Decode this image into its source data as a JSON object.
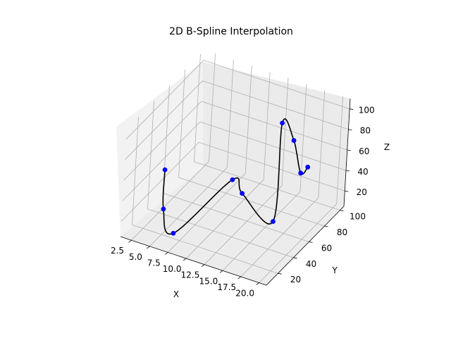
{
  "chart_data": {
    "type": "line3d",
    "title": "2D B-Spline Interpolation",
    "xlabel": "X",
    "ylabel": "Y",
    "zlabel": "Z",
    "xlim": [
      1,
      21
    ],
    "ylim": [
      5,
      105
    ],
    "zlim": [
      5,
      110
    ],
    "grid": true,
    "xticks": [
      "2.5",
      "5.0",
      "7.5",
      "10.0",
      "12.5",
      "15.0",
      "17.5",
      "20.0"
    ],
    "yticks": [
      "20",
      "40",
      "60",
      "80",
      "100"
    ],
    "zticks": [
      "20",
      "40",
      "60",
      "80",
      "100"
    ],
    "series": [
      {
        "kind": "points",
        "color": "#0000ff",
        "points": [
          {
            "x": 4.0,
            "y": 30,
            "z": 58
          },
          {
            "x": 4.3,
            "y": 28,
            "z": 22
          },
          {
            "x": 6.7,
            "y": 19,
            "z": 11
          },
          {
            "x": 11.2,
            "y": 50,
            "z": 50
          },
          {
            "x": 12.8,
            "y": 48,
            "z": 42
          },
          {
            "x": 16.0,
            "y": 60,
            "z": 13
          },
          {
            "x": 15.0,
            "y": 75,
            "z": 95
          },
          {
            "x": 16.5,
            "y": 77,
            "z": 80
          },
          {
            "x": 16.2,
            "y": 92,
            "z": 36
          },
          {
            "x": 17.5,
            "y": 88,
            "z": 48
          }
        ]
      },
      {
        "kind": "spline",
        "color": "#000000"
      }
    ]
  },
  "colors": {
    "pane_left": "#f2f2f2",
    "pane_right": "#ebebeb",
    "pane_floor": "#ececec",
    "grid": "#b0b0b0",
    "curve": "#000000",
    "points": "#0000ff"
  }
}
